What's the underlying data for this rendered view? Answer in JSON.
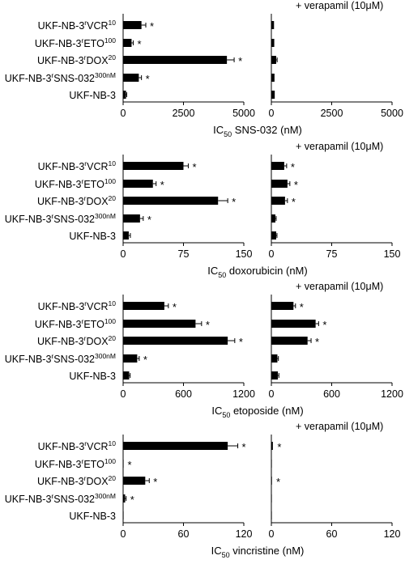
{
  "chart_data": [
    {
      "type": "bar",
      "orientation": "horizontal",
      "drug": "SNS-032",
      "xlabel": {
        "prefix": "IC",
        "sub": "50",
        "suffix": " SNS-032 (nM)"
      },
      "xlim": [
        0,
        5000
      ],
      "xticks": [
        "0",
        "2500",
        "5000"
      ],
      "categories": [
        {
          "base": "UKF-NB-3",
          "sup1": "r",
          "mid": "VCR",
          "sup2": "10"
        },
        {
          "base": "UKF-NB-3",
          "sup1": "r",
          "mid": "ETO",
          "sup2": "100"
        },
        {
          "base": "UKF-NB-3",
          "sup1": "r",
          "mid": "DOX",
          "sup2": "20"
        },
        {
          "base": "UKF-NB-3",
          "sup1": "r",
          "mid": "SNS-032",
          "sup2": "300nM"
        },
        {
          "base": "UKF-NB-3",
          "sup1": "",
          "mid": "",
          "sup2": ""
        }
      ],
      "series": [
        {
          "values": [
            760,
            350,
            4300,
            650,
            120
          ],
          "errors": [
            180,
            70,
            300,
            110,
            30
          ],
          "significant": [
            true,
            true,
            true,
            true,
            false
          ]
        },
        {
          "title": "+ verapamil (10μM)",
          "values": [
            110,
            120,
            200,
            130,
            140
          ],
          "errors": [
            25,
            25,
            40,
            25,
            25
          ],
          "significant": [
            false,
            false,
            false,
            false,
            false
          ]
        }
      ]
    },
    {
      "type": "bar",
      "orientation": "horizontal",
      "drug": "doxorubicin",
      "xlabel": {
        "prefix": "IC",
        "sub": "50",
        "suffix": " doxorubicin (nM)"
      },
      "xlim": [
        0,
        150
      ],
      "xticks": [
        "0",
        "75",
        "150"
      ],
      "categories": [
        {
          "base": "UKF-NB-3",
          "sup1": "r",
          "mid": "VCR",
          "sup2": "10"
        },
        {
          "base": "UKF-NB-3",
          "sup1": "r",
          "mid": "ETO",
          "sup2": "100"
        },
        {
          "base": "UKF-NB-3",
          "sup1": "r",
          "mid": "DOX",
          "sup2": "20"
        },
        {
          "base": "UKF-NB-3",
          "sup1": "r",
          "mid": "SNS-032",
          "sup2": "300nM"
        },
        {
          "base": "UKF-NB-3",
          "sup1": "",
          "mid": "",
          "sup2": ""
        }
      ],
      "series": [
        {
          "values": [
            75,
            37,
            118,
            21,
            7
          ],
          "errors": [
            6,
            4,
            12,
            4,
            2
          ],
          "significant": [
            true,
            true,
            true,
            true,
            false
          ]
        },
        {
          "title": "+ verapamil (10μM)",
          "values": [
            16,
            20,
            17,
            5,
            6
          ],
          "errors": [
            3,
            3,
            3,
            1,
            1
          ],
          "significant": [
            true,
            true,
            true,
            false,
            false
          ]
        }
      ]
    },
    {
      "type": "bar",
      "orientation": "horizontal",
      "drug": "etoposide",
      "xlabel": {
        "prefix": "IC",
        "sub": "50",
        "suffix": " etoposide (nM)"
      },
      "xlim": [
        0,
        1200
      ],
      "xticks": [
        "0",
        "600",
        "1200"
      ],
      "categories": [
        {
          "base": "UKF-NB-3",
          "sup1": "r",
          "mid": "VCR",
          "sup2": "10"
        },
        {
          "base": "UKF-NB-3",
          "sup1": "r",
          "mid": "ETO",
          "sup2": "100"
        },
        {
          "base": "UKF-NB-3",
          "sup1": "r",
          "mid": "DOX",
          "sup2": "20"
        },
        {
          "base": "UKF-NB-3",
          "sup1": "r",
          "mid": "SNS-032",
          "sup2": "300nM"
        },
        {
          "base": "UKF-NB-3",
          "sup1": "",
          "mid": "",
          "sup2": ""
        }
      ],
      "series": [
        {
          "values": [
            410,
            720,
            1040,
            140,
            60
          ],
          "errors": [
            40,
            60,
            70,
            20,
            10
          ],
          "significant": [
            true,
            true,
            true,
            true,
            false
          ]
        },
        {
          "title": "+ verapamil (10μM)",
          "values": [
            220,
            440,
            360,
            60,
            65
          ],
          "errors": [
            20,
            30,
            35,
            10,
            10
          ],
          "significant": [
            true,
            true,
            true,
            false,
            false
          ]
        }
      ]
    },
    {
      "type": "bar",
      "orientation": "horizontal",
      "drug": "vincristine",
      "xlabel": {
        "prefix": "IC",
        "sub": "50",
        "suffix": " vincristine (nM)"
      },
      "xlim": [
        0,
        120
      ],
      "xticks": [
        "0",
        "60",
        "120"
      ],
      "categories": [
        {
          "base": "UKF-NB-3",
          "sup1": "r",
          "mid": "VCR",
          "sup2": "10"
        },
        {
          "base": "UKF-NB-3",
          "sup1": "r",
          "mid": "ETO",
          "sup2": "100"
        },
        {
          "base": "UKF-NB-3",
          "sup1": "r",
          "mid": "DOX",
          "sup2": "20"
        },
        {
          "base": "UKF-NB-3",
          "sup1": "r",
          "mid": "SNS-032",
          "sup2": "300nM"
        },
        {
          "base": "UKF-NB-3",
          "sup1": "",
          "mid": "",
          "sup2": ""
        }
      ],
      "series": [
        {
          "values": [
            104,
            0.3,
            22,
            2,
            0.2
          ],
          "errors": [
            10,
            0.1,
            4,
            1,
            0.1
          ],
          "significant": [
            true,
            true,
            true,
            true,
            false
          ]
        },
        {
          "title": "+ verapamil (10μM)",
          "values": [
            1.5,
            0.2,
            0.6,
            0.2,
            0.2
          ],
          "errors": [
            0.4,
            0.1,
            0.2,
            0.1,
            0.1
          ],
          "significant": [
            true,
            false,
            true,
            false,
            false
          ]
        }
      ]
    }
  ],
  "significance_marker": "*"
}
